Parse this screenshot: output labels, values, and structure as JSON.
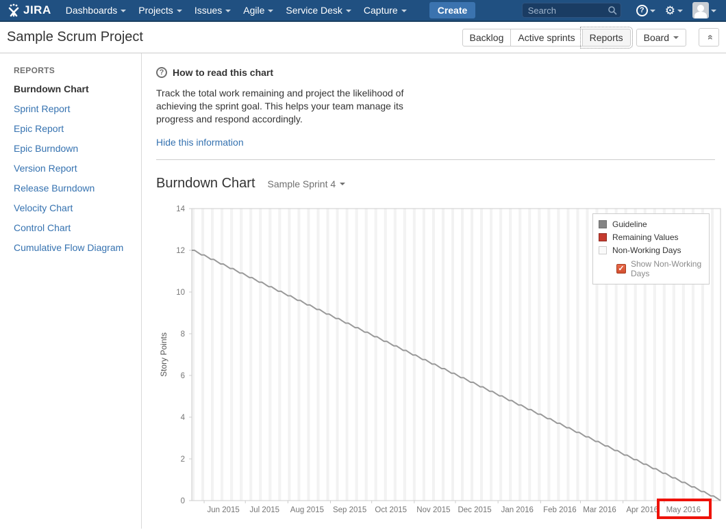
{
  "nav": {
    "logo_text": "JIRA",
    "items": [
      "Dashboards",
      "Projects",
      "Issues",
      "Agile",
      "Service Desk",
      "Capture"
    ],
    "create_label": "Create",
    "search_placeholder": "Search"
  },
  "header": {
    "title": "Sample Scrum Project",
    "view_buttons": [
      "Backlog",
      "Active sprints",
      "Reports"
    ],
    "active_view": "Reports",
    "board_label": "Board"
  },
  "sidebar": {
    "heading": "REPORTS",
    "items": [
      {
        "label": "Burndown Chart",
        "active": true
      },
      {
        "label": "Sprint Report",
        "active": false
      },
      {
        "label": "Epic Report",
        "active": false
      },
      {
        "label": "Epic Burndown",
        "active": false
      },
      {
        "label": "Version Report",
        "active": false
      },
      {
        "label": "Release Burndown",
        "active": false
      },
      {
        "label": "Velocity Chart",
        "active": false
      },
      {
        "label": "Control Chart",
        "active": false
      },
      {
        "label": "Cumulative Flow Diagram",
        "active": false
      }
    ]
  },
  "info": {
    "title": "How to read this chart",
    "body": "Track the total work remaining and project the likelihood of achieving the sprint goal. This helps your team manage its progress and respond accordingly.",
    "hide_link": "Hide this information"
  },
  "main": {
    "heading": "Burndown Chart",
    "sprint_selector": "Sample Sprint 4"
  },
  "chart_data": {
    "type": "line",
    "ylabel": "Story Points",
    "ylim": [
      0,
      14
    ],
    "yticks": [
      0,
      2,
      4,
      6,
      8,
      10,
      12,
      14
    ],
    "x_tick_labels": [
      "Jun 2015",
      "Jul 2015",
      "Aug 2015",
      "Sep 2015",
      "Oct 2015",
      "Nov 2015",
      "Dec 2015",
      "Jan 2016",
      "Feb 2016",
      "Mar 2016",
      "Apr 2016",
      "May 2016"
    ],
    "sprint_start": "2015-05-23",
    "sprint_end": "2016-06-11",
    "series": [
      {
        "name": "Guideline",
        "color": "#999999",
        "start_value": 12,
        "end_value": 0,
        "shape": "declines on working days, flat on weekends"
      },
      {
        "name": "Remaining Values",
        "color": "#c53b2f",
        "values": []
      }
    ],
    "non_working_days": {
      "label": "Non-Working Days",
      "color": "#f2f2f2",
      "pattern": "weekends"
    },
    "axis_colors": {
      "line": "#cccccc",
      "tick_text": "#757575",
      "ylabel_text": "#555555"
    },
    "legend": {
      "entries": [
        {
          "label": "Guideline",
          "swatch": "#848484",
          "swatch_border": "#6e6e6e"
        },
        {
          "label": "Remaining Values",
          "swatch": "#c53b2f",
          "swatch_border": "#8f2a22"
        },
        {
          "label": "Non-Working Days",
          "swatch": "#fafafa",
          "swatch_border": "#cccccc"
        }
      ],
      "checkbox": {
        "label": "Show Non-Working Days",
        "checked": true,
        "check_glyph": "✓"
      }
    },
    "annotation": {
      "type": "highlight-box",
      "target_label": "May 2016",
      "border_color": "#ee1208",
      "border_width": 4
    }
  }
}
